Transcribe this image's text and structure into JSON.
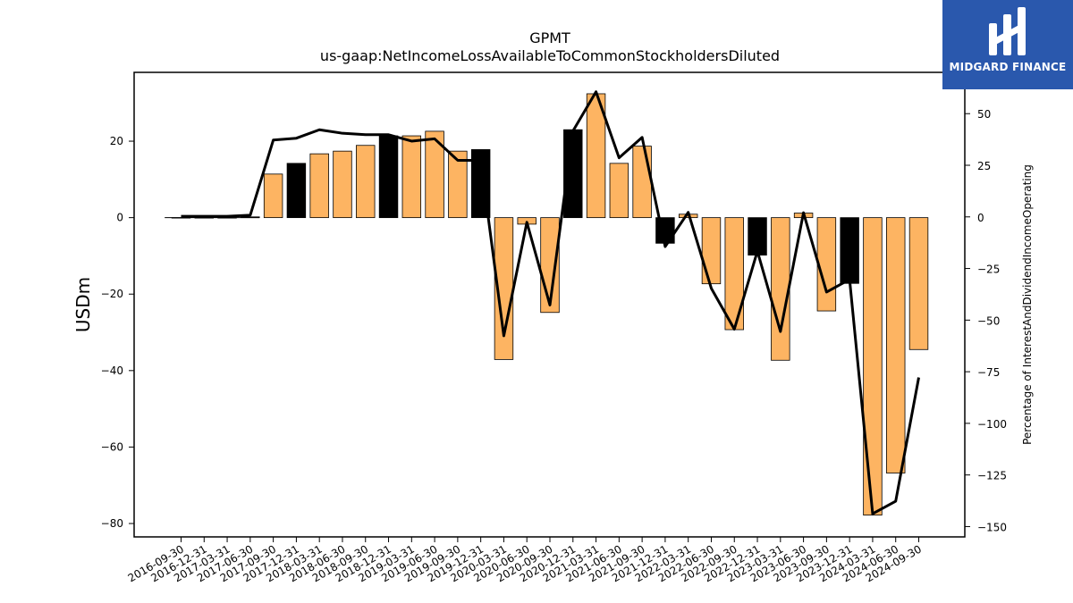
{
  "brand": {
    "name": "MIDGARD FINANCE",
    "bg_color": "#2a58ad"
  },
  "chart_data": {
    "type": "bar",
    "title": "GPMT",
    "subtitle": "us-gaap:NetIncomeLossAvailableToCommonStockholdersDiluted",
    "ylabel": "USDm",
    "y2label": "Percentage of InterestAndDividendIncomeOperating",
    "ylim": [
      -83.5,
      38
    ],
    "y2lim": [
      -155,
      70
    ],
    "yticks": [
      -80,
      -60,
      -40,
      -20,
      0,
      20
    ],
    "y2ticks": [
      -150,
      -125,
      -100,
      -75,
      -50,
      -25,
      0,
      25,
      50
    ],
    "grid": false,
    "colors": {
      "positive": "#fdb462",
      "negative": "#fdb462",
      "highlight": "#000000",
      "line": "#000000"
    },
    "categories": [
      "2016-09-30",
      "2016-12-31",
      "2017-03-31",
      "2017-06-30",
      "2017-09-30",
      "2017-12-31",
      "2018-03-31",
      "2018-06-30",
      "2018-09-30",
      "2018-12-31",
      "2019-03-31",
      "2019-06-30",
      "2019-09-30",
      "2019-12-31",
      "2020-03-31",
      "2020-06-30",
      "2020-09-30",
      "2020-12-31",
      "2021-03-31",
      "2021-06-30",
      "2021-09-30",
      "2021-12-31",
      "2022-03-31",
      "2022-06-30",
      "2022-09-30",
      "2022-12-31",
      "2023-03-31",
      "2023-06-30",
      "2023-09-30",
      "2023-12-31",
      "2024-03-31",
      "2024-06-30",
      "2024-09-30"
    ],
    "series": [
      {
        "kind": "bar",
        "axis": "left",
        "values": [
          0,
          0,
          0,
          0.2,
          11.4,
          14.2,
          16.7,
          17.4,
          18.9,
          21.4,
          21.4,
          22.6,
          17.4,
          17.8,
          -37.1,
          -1.7,
          -24.8,
          23.0,
          32.4,
          14.2,
          18.7,
          -6.7,
          0.9,
          -17.3,
          -29.3,
          -9.8,
          -37.3,
          1.2,
          -24.4,
          -17.2,
          -77.8,
          -66.8,
          -34.5
        ],
        "highlight": [
          false,
          false,
          false,
          false,
          false,
          true,
          false,
          false,
          false,
          true,
          false,
          false,
          false,
          true,
          false,
          false,
          false,
          true,
          false,
          false,
          false,
          true,
          false,
          false,
          false,
          true,
          false,
          false,
          false,
          true,
          false,
          false,
          false
        ]
      },
      {
        "kind": "line",
        "axis": "right",
        "values": [
          0.3,
          0.3,
          0.3,
          0.8,
          37.2,
          38.1,
          42.2,
          40.5,
          39.8,
          39.8,
          36.7,
          37.8,
          27.4,
          27.4,
          -57.6,
          -2.6,
          -42.7,
          41.6,
          60.6,
          28.6,
          38.5,
          -14.4,
          2.2,
          -34.6,
          -54.4,
          -16.6,
          -55.5,
          2.0,
          -36.4,
          -30.3,
          -143.8,
          -137.7,
          -77.8
        ]
      }
    ]
  }
}
